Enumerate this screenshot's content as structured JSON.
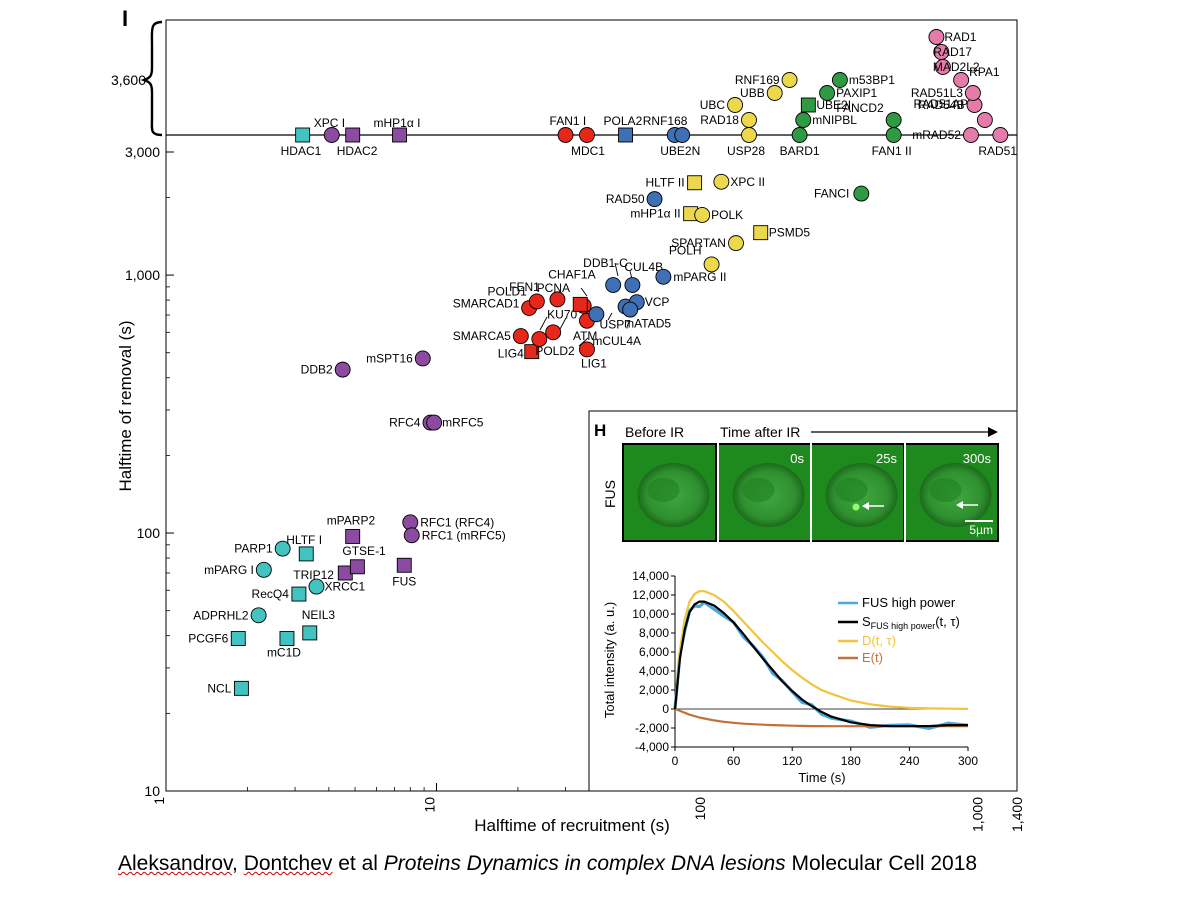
{
  "panel_i_label": "I",
  "panel_h_label": "H",
  "colors": {
    "cyan": "#43c3bf",
    "purple": "#8a4ba0",
    "red": "#e8271b",
    "blue": "#3f6fb4",
    "yellow": "#ecd84c",
    "green": "#2e9a44",
    "pink": "#e57ba8",
    "fus_blue": "#4aa8e0",
    "d_yellow": "#f2c33c",
    "e_orange": "#c3703a",
    "micro_green": "#1e8a1e"
  },
  "chart_data": [
    {
      "type": "scatter",
      "title": "",
      "xlabel": "Halftime of recruitment (s)",
      "ylabel": "Halftime of removal (s)",
      "x_scale": "log",
      "y_scale": "log",
      "xlim": [
        1,
        1400
      ],
      "ylim": [
        10,
        3000
      ],
      "x_ticks": [
        "1",
        "10",
        "100",
        "1,000",
        "1,400"
      ],
      "y_ticks": [
        "10",
        "100",
        "1,000",
        "3,000",
        "3,600"
      ],
      "grid": false,
      "points": [
        {
          "label": "NCL",
          "x": 1.9,
          "y": 25,
          "color": "cyan",
          "shape": "square"
        },
        {
          "label": "PCGF6",
          "x": 1.85,
          "y": 39,
          "color": "cyan",
          "shape": "square"
        },
        {
          "label": "mC1D",
          "x": 2.8,
          "y": 39,
          "color": "cyan",
          "shape": "square"
        },
        {
          "label": "NEIL3",
          "x": 3.4,
          "y": 41,
          "color": "cyan",
          "shape": "square"
        },
        {
          "label": "ADPRHL2",
          "x": 2.2,
          "y": 48,
          "color": "cyan",
          "shape": "circle"
        },
        {
          "label": "RecQ4",
          "x": 3.1,
          "y": 58,
          "color": "cyan",
          "shape": "square"
        },
        {
          "label": "XRCC1",
          "x": 3.6,
          "y": 62,
          "color": "cyan",
          "shape": "circle"
        },
        {
          "label": "mPARG I",
          "x": 2.3,
          "y": 72,
          "color": "cyan",
          "shape": "circle"
        },
        {
          "label": "PARP1",
          "x": 2.7,
          "y": 87,
          "color": "cyan",
          "shape": "circle"
        },
        {
          "label": "HLTF I",
          "x": 3.3,
          "y": 83,
          "color": "cyan",
          "shape": "square"
        },
        {
          "label": "TRIP12",
          "x": 4.6,
          "y": 70,
          "color": "purple",
          "shape": "square"
        },
        {
          "label": "GTSE-1",
          "x": 5.1,
          "y": 74,
          "color": "purple",
          "shape": "square"
        },
        {
          "label": "mPARP2",
          "x": 4.9,
          "y": 97,
          "color": "purple",
          "shape": "square"
        },
        {
          "label": "FUS",
          "x": 7.6,
          "y": 75,
          "color": "purple",
          "shape": "square"
        },
        {
          "label": "RFC1 (RFC4)",
          "x": 8.0,
          "y": 110,
          "color": "purple",
          "shape": "circle"
        },
        {
          "label": "RFC1 (mRFC5)",
          "x": 8.1,
          "y": 98,
          "color": "purple",
          "shape": "circle"
        },
        {
          "label": "RFC4",
          "x": 9.5,
          "y": 268,
          "color": "purple",
          "shape": "circle"
        },
        {
          "label": "mRFC5",
          "x": 9.8,
          "y": 268,
          "color": "purple",
          "shape": "circle"
        },
        {
          "label": "DDB2",
          "x": 4.5,
          "y": 430,
          "color": "purple",
          "shape": "circle"
        },
        {
          "label": "mSPT16",
          "x": 8.9,
          "y": 475,
          "color": "purple",
          "shape": "circle"
        },
        {
          "label": "SMARCA5",
          "x": 20.5,
          "y": 580,
          "color": "red",
          "shape": "circle"
        },
        {
          "label": "LIG4",
          "x": 22.5,
          "y": 505,
          "color": "red",
          "shape": "square"
        },
        {
          "label": "POLD2",
          "x": 24,
          "y": 565,
          "color": "red",
          "shape": "circle"
        },
        {
          "label": "KU70",
          "x": 27,
          "y": 600,
          "color": "red",
          "shape": "circle"
        },
        {
          "label": "LIG1",
          "x": 36,
          "y": 515,
          "color": "red",
          "shape": "circle"
        },
        {
          "label": "FEN1",
          "x": 22,
          "y": 745,
          "color": "red",
          "shape": "circle"
        },
        {
          "label": "POLD1",
          "x": 23.5,
          "y": 790,
          "color": "red",
          "shape": "circle"
        },
        {
          "label": "SMARCAD1",
          "x": 28,
          "y": 805,
          "color": "red",
          "shape": "circle"
        },
        {
          "label": "PCNA",
          "x": 35,
          "y": 760,
          "color": "red",
          "shape": "circle"
        },
        {
          "label": "CHAF1A",
          "x": 34,
          "y": 770,
          "color": "red",
          "shape": "square"
        },
        {
          "label": "ATM",
          "x": 36,
          "y": 665,
          "color": "red",
          "shape": "circle"
        },
        {
          "label": "mCUL4A",
          "x": 39,
          "y": 705,
          "color": "blue",
          "shape": "circle"
        },
        {
          "label": "DDB1-C",
          "x": 45,
          "y": 915,
          "color": "blue",
          "shape": "circle"
        },
        {
          "label": "CUL4B",
          "x": 53,
          "y": 915,
          "color": "blue",
          "shape": "circle"
        },
        {
          "label": "USP7",
          "x": 50,
          "y": 755,
          "color": "blue",
          "shape": "circle"
        },
        {
          "label": "VCP",
          "x": 55,
          "y": 785,
          "color": "blue",
          "shape": "circle"
        },
        {
          "label": "mATAD5",
          "x": 52,
          "y": 735,
          "color": "blue",
          "shape": "circle"
        },
        {
          "label": "mPARG II",
          "x": 69,
          "y": 985,
          "color": "blue",
          "shape": "circle"
        },
        {
          "label": "RAD50",
          "x": 64,
          "y": 1970,
          "color": "blue",
          "shape": "circle"
        },
        {
          "label": "HLTF II",
          "x": 90,
          "y": 2280,
          "color": "yellow",
          "shape": "square"
        },
        {
          "label": "XPC II",
          "x": 113,
          "y": 2300,
          "color": "yellow",
          "shape": "circle"
        },
        {
          "label": "mHP1α II",
          "x": 87,
          "y": 1730,
          "color": "yellow",
          "shape": "square"
        },
        {
          "label": "POLK",
          "x": 96,
          "y": 1710,
          "color": "yellow",
          "shape": "circle"
        },
        {
          "label": "SPARTAN",
          "x": 128,
          "y": 1330,
          "color": "yellow",
          "shape": "circle"
        },
        {
          "label": "PSMD5",
          "x": 158,
          "y": 1460,
          "color": "yellow",
          "shape": "square"
        },
        {
          "label": "POLH",
          "x": 104,
          "y": 1100,
          "color": "yellow",
          "shape": "circle"
        },
        {
          "label": "FANCI",
          "x": 372,
          "y": 2070,
          "color": "green",
          "shape": "circle"
        }
      ],
      "saturated_points": [
        {
          "label": "HDAC1",
          "x": 3.2,
          "color": "cyan",
          "shape": "square",
          "row": "axis"
        },
        {
          "label": "XPC I",
          "x": 4.1,
          "color": "purple",
          "shape": "circle",
          "row": "axis"
        },
        {
          "label": "HDAC2",
          "x": 4.9,
          "color": "purple",
          "shape": "square",
          "row": "axis"
        },
        {
          "label": "mHP1α I",
          "x": 7.3,
          "color": "purple",
          "shape": "square",
          "row": "axis"
        },
        {
          "label": "FAN1 I",
          "x": 30,
          "color": "red",
          "shape": "circle",
          "row": "axis"
        },
        {
          "label": "MDC1",
          "x": 36,
          "color": "red",
          "shape": "circle",
          "row": "axis"
        },
        {
          "label": "POLA2",
          "x": 50,
          "color": "blue",
          "shape": "square",
          "row": "axis"
        },
        {
          "label": "RNF168",
          "x": 76,
          "color": "blue",
          "shape": "circle",
          "row": "axis"
        },
        {
          "label": "UBE2N",
          "x": 81,
          "color": "blue",
          "shape": "circle",
          "row": "axis"
        },
        {
          "label": "USP28",
          "x": 143,
          "color": "yellow",
          "shape": "circle",
          "row": "axis"
        },
        {
          "label": "RAD18",
          "x": 143,
          "color": "yellow",
          "shape": "circle",
          "row": "b1"
        },
        {
          "label": "UBC",
          "x": 127,
          "color": "yellow",
          "shape": "circle",
          "row": "b2"
        },
        {
          "label": "UBB",
          "x": 178,
          "color": "yellow",
          "shape": "circle",
          "row": "b3"
        },
        {
          "label": "RNF169",
          "x": 202,
          "color": "yellow",
          "shape": "circle",
          "row": "b4"
        },
        {
          "label": "BARD1",
          "x": 220,
          "color": "green",
          "shape": "circle",
          "row": "axis"
        },
        {
          "label": "mNIPBL",
          "x": 227,
          "color": "green",
          "shape": "circle",
          "row": "b1"
        },
        {
          "label": "UBE2I",
          "x": 237,
          "color": "green",
          "shape": "square",
          "row": "b2"
        },
        {
          "label": "PAXIP1",
          "x": 278,
          "color": "green",
          "shape": "circle",
          "row": "b3"
        },
        {
          "label": "m53BP1",
          "x": 310,
          "color": "green",
          "shape": "circle",
          "row": "b4"
        },
        {
          "label": "FAN1 II",
          "x": 490,
          "color": "green",
          "shape": "circle",
          "row": "axis"
        },
        {
          "label": "FANCD2",
          "x": 490,
          "color": "green",
          "shape": "circle",
          "row": "b1"
        },
        {
          "label": "mRAD52",
          "x": 946,
          "color": "pink",
          "shape": "circle",
          "row": "axis"
        },
        {
          "label": "RAD51AP1",
          "x": 1065,
          "color": "pink",
          "shape": "circle",
          "row": "b1"
        },
        {
          "label": "RAD51",
          "x": 1215,
          "color": "pink",
          "shape": "circle",
          "row": "axis"
        },
        {
          "label": "RAD54B",
          "x": 975,
          "color": "pink",
          "shape": "circle",
          "row": "b2"
        },
        {
          "label": "RAD51L3",
          "x": 962,
          "color": "pink",
          "shape": "circle",
          "row": "b3"
        },
        {
          "label": "RPA1",
          "x": 870,
          "color": "pink",
          "shape": "circle",
          "row": "b4"
        },
        {
          "label": "MAD2L2",
          "x": 745,
          "color": "pink",
          "shape": "circle",
          "row": "b5"
        },
        {
          "label": "RAD17",
          "x": 735,
          "color": "pink",
          "shape": "circle",
          "row": "b6"
        },
        {
          "label": "RAD1",
          "x": 705,
          "color": "pink",
          "shape": "circle",
          "row": "b7"
        }
      ]
    },
    {
      "type": "line",
      "title": "",
      "xlabel": "Time (s)",
      "ylabel": "Total intensity (a. u.)",
      "xlim": [
        0,
        300
      ],
      "ylim": [
        -4000,
        14000
      ],
      "x_ticks": [
        "0",
        "60",
        "120",
        "180",
        "240",
        "300"
      ],
      "y_ticks": [
        "-4,000",
        "-2,000",
        "0",
        "2,000",
        "4,000",
        "6,000",
        "8,000",
        "10,000",
        "12,000",
        "14,000"
      ],
      "legend_position": "top-right",
      "x": [
        0,
        5,
        10,
        15,
        20,
        25,
        30,
        40,
        50,
        60,
        70,
        80,
        90,
        100,
        110,
        120,
        130,
        140,
        150,
        160,
        180,
        200,
        220,
        240,
        260,
        280,
        300
      ],
      "series": [
        {
          "name": "FUS high power",
          "color": "fus_blue",
          "values": [
            0,
            5600,
            8500,
            10200,
            10800,
            11000,
            11000,
            10600,
            9900,
            8900,
            7800,
            6600,
            5300,
            4000,
            2800,
            1800,
            900,
            200,
            -400,
            -900,
            -1500,
            -1700,
            -1800,
            -1800,
            -1800,
            -1700,
            -1700
          ]
        },
        {
          "name": "S",
          "color": "black",
          "values": [
            0,
            5300,
            8400,
            10200,
            11000,
            11300,
            11300,
            10900,
            10100,
            9100,
            7900,
            6600,
            5300,
            4100,
            2900,
            1900,
            1000,
            300,
            -300,
            -800,
            -1400,
            -1700,
            -1800,
            -1800,
            -1800,
            -1700,
            -1700
          ]
        },
        {
          "name": "D(t, τ)",
          "color": "d_yellow",
          "values": [
            0,
            6200,
            9500,
            11300,
            12100,
            12400,
            12400,
            12000,
            11300,
            10300,
            9200,
            8100,
            7000,
            6000,
            5000,
            4100,
            3300,
            2600,
            2000,
            1600,
            900,
            500,
            250,
            120,
            60,
            30,
            10
          ]
        },
        {
          "name": "E(t)",
          "color": "e_orange",
          "values": [
            0,
            -200,
            -400,
            -600,
            -750,
            -900,
            -1000,
            -1200,
            -1350,
            -1450,
            -1550,
            -1600,
            -1650,
            -1700,
            -1730,
            -1760,
            -1780,
            -1800,
            -1800,
            -1810,
            -1810,
            -1810,
            -1810,
            -1810,
            -1810,
            -1810,
            -1810
          ]
        }
      ],
      "legend_s_main": "S",
      "legend_s_sub": "FUS high power",
      "legend_s_tail": "(t, τ)"
    }
  ],
  "micrograph": {
    "before_label": "Before IR",
    "after_label": "Time after IR",
    "row_label": "FUS",
    "frames": [
      "",
      "0s",
      "25s",
      "300s"
    ],
    "scale_label": "5µm"
  },
  "citation": {
    "authors_a": "Aleksandrov",
    "sep1": ", ",
    "authors_b": "Dontchev",
    "sep2": " et al ",
    "title": "Proteins Dynamics in complex DNA lesions",
    "journal": " Molecular Cell 2018"
  }
}
